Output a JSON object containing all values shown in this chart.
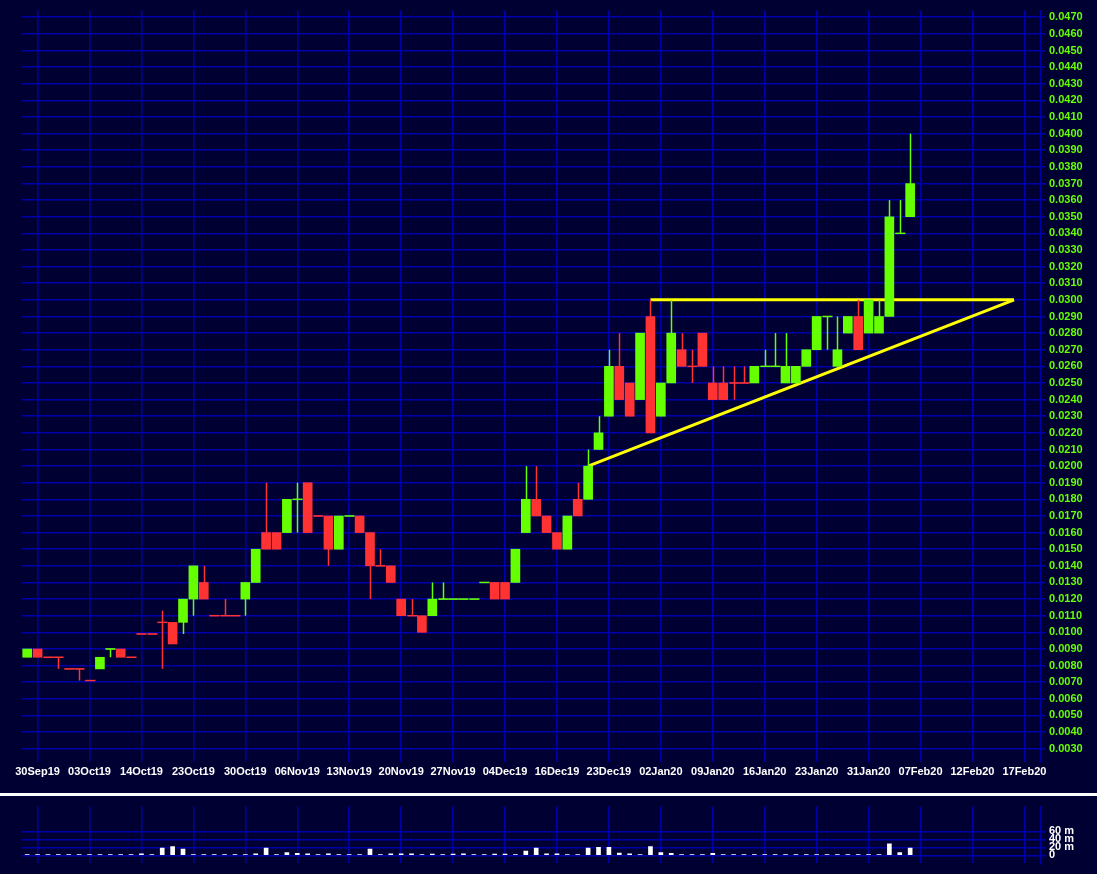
{
  "chart_data": [
    {
      "type": "candlestick",
      "categories": [
        null,
        "30Sep19",
        null,
        null,
        null,
        null,
        "03Oct19",
        null,
        null,
        null,
        null,
        "14Oct19",
        null,
        null,
        null,
        null,
        "23Oct19",
        null,
        null,
        null,
        null,
        "30Oct19",
        null,
        null,
        null,
        null,
        "06Nov19",
        null,
        null,
        null,
        null,
        "13Nov19",
        null,
        null,
        null,
        null,
        "20Nov19",
        null,
        null,
        null,
        null,
        "27Nov19",
        null,
        null,
        null,
        null,
        "04Dec19",
        null,
        null,
        null,
        null,
        "16Dec19",
        null,
        null,
        null,
        null,
        "23Dec19",
        null,
        null,
        null,
        null,
        "02Jan20",
        null,
        null,
        null,
        null,
        "09Jan20",
        null,
        null,
        null,
        null,
        "16Jan20",
        null,
        null,
        null,
        null,
        "23Jan20",
        null,
        null,
        null,
        null,
        "31Jan20",
        null,
        null,
        null,
        null,
        "07Feb20",
        null,
        null,
        null,
        null,
        "12Feb20",
        null,
        null,
        null,
        null,
        "17Feb20",
        null
      ],
      "ohlc": [
        [
          0.0085,
          0.009,
          0.0085,
          0.009
        ],
        [
          0.009,
          0.009,
          0.0085,
          0.0085
        ],
        [
          0.0085,
          0.0085,
          0.0085,
          0.0085
        ],
        [
          0.0085,
          0.0085,
          0.0078,
          0.0085
        ],
        [
          0.0078,
          0.0078,
          0.0078,
          0.0078
        ],
        [
          0.0078,
          0.0078,
          0.0071,
          0.0078
        ],
        [
          0.0071,
          0.0071,
          0.0071,
          0.0071
        ],
        [
          0.0078,
          0.0085,
          0.0078,
          0.0085
        ],
        [
          0.009,
          0.009,
          0.0085,
          0.009
        ],
        [
          0.009,
          0.009,
          0.0085,
          0.0085
        ],
        [
          0.0085,
          0.0085,
          0.0085,
          0.0085
        ],
        [
          0.0099,
          0.0099,
          0.0099,
          0.0099
        ],
        [
          0.0099,
          0.0099,
          0.0099,
          0.0099
        ],
        [
          0.0106,
          0.0113,
          0.0078,
          0.0106
        ],
        [
          0.0106,
          0.0106,
          0.0093,
          0.0093
        ],
        [
          0.0106,
          0.012,
          0.0099,
          0.012
        ],
        [
          0.012,
          0.014,
          0.011,
          0.014
        ],
        [
          0.013,
          0.014,
          0.012,
          0.012
        ],
        [
          0.011,
          0.011,
          0.011,
          0.011
        ],
        [
          0.011,
          0.012,
          0.011,
          0.011
        ],
        [
          0.011,
          0.011,
          0.011,
          0.011
        ],
        [
          0.012,
          0.013,
          0.011,
          0.013
        ],
        [
          0.013,
          0.015,
          0.013,
          0.015
        ],
        [
          0.016,
          0.019,
          0.015,
          0.015
        ],
        [
          0.016,
          0.016,
          0.015,
          0.015
        ],
        [
          0.016,
          0.018,
          0.016,
          0.018
        ],
        [
          0.018,
          0.019,
          0.016,
          0.018
        ],
        [
          0.019,
          0.019,
          0.016,
          0.016
        ],
        [
          0.017,
          0.017,
          0.017,
          0.017
        ],
        [
          0.017,
          0.017,
          0.014,
          0.015
        ],
        [
          0.015,
          0.017,
          0.015,
          0.017
        ],
        [
          0.017,
          0.017,
          0.017,
          0.017
        ],
        [
          0.017,
          0.017,
          0.016,
          0.016
        ],
        [
          0.016,
          0.016,
          0.012,
          0.014
        ],
        [
          0.014,
          0.015,
          0.014,
          0.014
        ],
        [
          0.014,
          0.014,
          0.013,
          0.013
        ],
        [
          0.012,
          0.012,
          0.011,
          0.011
        ],
        [
          0.011,
          0.012,
          0.011,
          0.011
        ],
        [
          0.011,
          0.011,
          0.01,
          0.01
        ],
        [
          0.011,
          0.013,
          0.011,
          0.012
        ],
        [
          0.012,
          0.013,
          0.012,
          0.012
        ],
        [
          0.012,
          0.012,
          0.012,
          0.012
        ],
        [
          0.012,
          0.012,
          0.012,
          0.012
        ],
        [
          0.012,
          0.012,
          0.012,
          0.012
        ],
        [
          0.013,
          0.013,
          0.013,
          0.013
        ],
        [
          0.013,
          0.013,
          0.012,
          0.012
        ],
        [
          0.013,
          0.013,
          0.012,
          0.012
        ],
        [
          0.013,
          0.015,
          0.013,
          0.015
        ],
        [
          0.016,
          0.02,
          0.016,
          0.018
        ],
        [
          0.018,
          0.02,
          0.017,
          0.017
        ],
        [
          0.017,
          0.017,
          0.016,
          0.016
        ],
        [
          0.016,
          0.016,
          0.015,
          0.015
        ],
        [
          0.015,
          0.017,
          0.015,
          0.017
        ],
        [
          0.018,
          0.019,
          0.017,
          0.017
        ],
        [
          0.018,
          0.021,
          0.018,
          0.02
        ],
        [
          0.021,
          0.023,
          0.021,
          0.022
        ],
        [
          0.023,
          0.027,
          0.023,
          0.026
        ],
        [
          0.026,
          0.028,
          0.024,
          0.024
        ],
        [
          0.025,
          0.025,
          0.023,
          0.023
        ],
        [
          0.024,
          0.028,
          0.024,
          0.028
        ],
        [
          0.029,
          0.03,
          0.022,
          0.022
        ],
        [
          0.023,
          0.025,
          0.023,
          0.025
        ],
        [
          0.025,
          0.03,
          0.025,
          0.028
        ],
        [
          0.027,
          0.028,
          0.026,
          0.026
        ],
        [
          0.026,
          0.027,
          0.025,
          0.026
        ],
        [
          0.028,
          0.028,
          0.026,
          0.026
        ],
        [
          0.025,
          0.026,
          0.024,
          0.024
        ],
        [
          0.025,
          0.026,
          0.024,
          0.024
        ],
        [
          0.025,
          0.026,
          0.024,
          0.025
        ],
        [
          0.025,
          0.026,
          0.025,
          0.025
        ],
        [
          0.025,
          0.026,
          0.025,
          0.026
        ],
        [
          0.026,
          0.027,
          0.026,
          0.026
        ],
        [
          0.026,
          0.028,
          0.026,
          0.026
        ],
        [
          0.025,
          0.028,
          0.025,
          0.026
        ],
        [
          0.025,
          0.026,
          0.025,
          0.026
        ],
        [
          0.026,
          0.027,
          0.026,
          0.027
        ],
        [
          0.027,
          0.029,
          0.027,
          0.029
        ],
        [
          0.029,
          0.029,
          0.027,
          0.029
        ],
        [
          0.026,
          0.029,
          0.026,
          0.027
        ],
        [
          0.028,
          0.029,
          0.028,
          0.029
        ],
        [
          0.029,
          0.03,
          0.027,
          0.027
        ],
        [
          0.028,
          0.03,
          0.028,
          0.03
        ],
        [
          0.028,
          0.03,
          0.028,
          0.029
        ],
        [
          0.029,
          0.036,
          0.029,
          0.035
        ],
        [
          0.034,
          0.036,
          0.034,
          0.034
        ],
        [
          0.035,
          0.04,
          0.035,
          0.037
        ],
        null,
        null,
        null,
        null,
        null,
        null,
        null,
        null,
        null,
        null,
        null,
        null
      ],
      "colors": [
        "#66ff00",
        "#ff3333",
        "#ff3333",
        "#ff3333",
        "#ff3333",
        "#ff3333",
        "#ff3333",
        "#66ff00",
        "#66ff00",
        "#ff3333",
        "#ff3333",
        "#ff3333",
        "#ff3333",
        "#ff3333",
        "#ff3333",
        "#66ff00",
        "#66ff00",
        "#ff3333",
        "#ff3333",
        "#ff3333",
        "#ff3333",
        "#66ff00",
        "#66ff00",
        "#ff3333",
        "#ff3333",
        "#66ff00",
        "#66ff00",
        "#ff3333",
        "#ff3333",
        "#ff3333",
        "#66ff00",
        "#66ff00",
        "#ff3333",
        "#ff3333",
        "#ff3333",
        "#ff3333",
        "#ff3333",
        "#ff3333",
        "#ff3333",
        "#66ff00",
        "#66ff00",
        "#66ff00",
        "#66ff00",
        "#66ff00",
        "#66ff00",
        "#ff3333",
        "#ff3333",
        "#66ff00",
        "#66ff00",
        "#ff3333",
        "#ff3333",
        "#ff3333",
        "#66ff00",
        "#ff3333",
        "#66ff00",
        "#66ff00",
        "#66ff00",
        "#ff3333",
        "#ff3333",
        "#66ff00",
        "#ff3333",
        "#66ff00",
        "#66ff00",
        "#ff3333",
        "#ff3333",
        "#ff3333",
        "#ff3333",
        "#ff3333",
        "#ff3333",
        "#ff3333",
        "#66ff00",
        "#66ff00",
        "#66ff00",
        "#66ff00",
        "#66ff00",
        "#66ff00",
        "#66ff00",
        "#66ff00",
        "#66ff00",
        "#66ff00",
        "#ff3333",
        "#66ff00",
        "#66ff00",
        "#66ff00",
        "#66ff00",
        "#66ff00",
        null,
        null,
        null,
        null,
        null,
        null,
        null,
        null,
        null,
        null,
        null,
        null
      ],
      "series": [
        {
          "type": "line",
          "values": [
            null,
            null,
            null,
            null,
            null,
            null,
            null,
            null,
            null,
            null,
            null,
            null,
            null,
            null,
            null,
            null,
            null,
            null,
            null,
            null,
            null,
            null,
            null,
            null,
            null,
            null,
            null,
            null,
            null,
            null,
            null,
            null,
            null,
            null,
            null,
            null,
            null,
            null,
            null,
            null,
            null,
            null,
            null,
            null,
            null,
            null,
            null,
            null,
            null,
            null,
            null,
            null,
            null,
            null,
            0.02,
            null,
            null,
            null,
            null,
            null,
            null,
            null,
            null,
            null,
            null,
            null,
            null,
            null,
            null,
            null,
            null,
            null,
            null,
            null,
            null,
            null,
            null,
            null,
            null,
            null,
            null,
            null,
            null,
            null,
            null,
            null,
            null,
            null,
            null,
            null,
            null,
            null,
            null,
            null,
            null,
            0.03,
            null,
            null
          ],
          "color": "#ffff00"
        },
        {
          "type": "line",
          "values": [
            null,
            null,
            null,
            null,
            null,
            null,
            null,
            null,
            null,
            null,
            null,
            null,
            null,
            null,
            null,
            null,
            null,
            null,
            null,
            null,
            null,
            null,
            null,
            null,
            null,
            null,
            null,
            null,
            null,
            null,
            null,
            null,
            null,
            null,
            null,
            null,
            null,
            null,
            null,
            null,
            null,
            null,
            null,
            null,
            null,
            null,
            null,
            null,
            null,
            null,
            null,
            null,
            null,
            null,
            null,
            null,
            null,
            null,
            null,
            null,
            0.03,
            null,
            null,
            null,
            null,
            null,
            null,
            null,
            null,
            null,
            null,
            null,
            null,
            null,
            null,
            null,
            null,
            null,
            null,
            null,
            null,
            null,
            null,
            null,
            null,
            null,
            null,
            null,
            null,
            null,
            null,
            null,
            null,
            null,
            null,
            0.03,
            null,
            null
          ],
          "color": "#ffff00"
        }
      ],
      "ylim": [
        0.0022,
        0.0474
      ],
      "yticks": [
        {
          "value": 0.003,
          "label": "0.0030"
        },
        {
          "value": 0.004,
          "label": "0.0040"
        },
        {
          "value": 0.005,
          "label": "0.0050"
        },
        {
          "value": 0.006,
          "label": "0.0060"
        },
        {
          "value": 0.007,
          "label": "0.0070"
        },
        {
          "value": 0.008,
          "label": "0.0080"
        },
        {
          "value": 0.009,
          "label": "0.0090"
        },
        {
          "value": 0.01,
          "label": "0.0100"
        },
        {
          "value": 0.011,
          "label": "0.0110"
        },
        {
          "value": 0.012,
          "label": "0.0120"
        },
        {
          "value": 0.013,
          "label": "0.0130"
        },
        {
          "value": 0.014,
          "label": "0.0140"
        },
        {
          "value": 0.015,
          "label": "0.0150"
        },
        {
          "value": 0.016,
          "label": "0.0160"
        },
        {
          "value": 0.017,
          "label": "0.0170"
        },
        {
          "value": 0.018,
          "label": "0.0180"
        },
        {
          "value": 0.019,
          "label": "0.0190"
        },
        {
          "value": 0.02,
          "label": "0.0200"
        },
        {
          "value": 0.021,
          "label": "0.0210"
        },
        {
          "value": 0.022,
          "label": "0.0220"
        },
        {
          "value": 0.023,
          "label": "0.0230"
        },
        {
          "value": 0.024,
          "label": "0.0240"
        },
        {
          "value": 0.025,
          "label": "0.0250"
        },
        {
          "value": 0.026,
          "label": "0.0260"
        },
        {
          "value": 0.027,
          "label": "0.0270"
        },
        {
          "value": 0.028,
          "label": "0.0280"
        },
        {
          "value": 0.029,
          "label": "0.0290"
        },
        {
          "value": 0.03,
          "label": "0.0300"
        },
        {
          "value": 0.031,
          "label": "0.0310"
        },
        {
          "value": 0.032,
          "label": "0.0320"
        },
        {
          "value": 0.033,
          "label": "0.0330"
        },
        {
          "value": 0.034,
          "label": "0.0340"
        },
        {
          "value": 0.035,
          "label": "0.0350"
        },
        {
          "value": 0.036,
          "label": "0.0360"
        },
        {
          "value": 0.037,
          "label": "0.0370"
        },
        {
          "value": 0.038,
          "label": "0.0380"
        },
        {
          "value": 0.039,
          "label": "0.0390"
        },
        {
          "value": 0.04,
          "label": "0.0400"
        },
        {
          "value": 0.041,
          "label": "0.0410"
        },
        {
          "value": 0.042,
          "label": "0.0420"
        },
        {
          "value": 0.043,
          "label": "0.0430"
        },
        {
          "value": 0.044,
          "label": "0.0440"
        },
        {
          "value": 0.045,
          "label": "0.0450"
        },
        {
          "value": 0.046,
          "label": "0.0460"
        },
        {
          "value": 0.047,
          "label": "0.0470"
        }
      ],
      "grid": true
    },
    {
      "type": "bar",
      "categories": [
        null,
        null,
        null,
        null,
        null,
        null,
        null,
        null,
        null,
        null,
        null,
        null,
        null,
        null,
        null,
        null,
        null,
        null,
        null,
        null,
        null,
        null,
        null,
        null,
        null,
        null,
        null,
        null,
        null,
        null,
        null,
        null,
        null,
        null,
        null,
        null,
        null,
        null,
        null,
        null,
        null,
        null,
        null,
        null,
        null,
        null,
        null,
        null,
        null,
        null,
        null,
        null,
        null,
        null,
        null,
        null,
        null,
        null,
        null,
        null,
        null,
        null,
        null,
        null,
        null,
        null,
        null,
        null,
        null,
        null,
        null,
        null,
        null,
        null,
        null,
        null,
        null,
        null,
        null,
        null,
        null,
        null,
        null,
        null,
        null,
        null,
        null,
        null,
        null,
        null,
        null,
        null,
        null,
        null,
        null,
        null,
        null,
        null
      ],
      "values": [
        2,
        2,
        2,
        2,
        2,
        2,
        2,
        2,
        2,
        2,
        2,
        4,
        2,
        18,
        22,
        16,
        2,
        2,
        2,
        2,
        2,
        2,
        4,
        18,
        2,
        7,
        5,
        4,
        2,
        4,
        2,
        2,
        2,
        16,
        2,
        4,
        4,
        4,
        2,
        3,
        2,
        3,
        4,
        2,
        2,
        3,
        3,
        2,
        11,
        18,
        4,
        4,
        2,
        2,
        18,
        20,
        20,
        6,
        4,
        2,
        22,
        7,
        5,
        2,
        2,
        2,
        5,
        2,
        2,
        2,
        2,
        2,
        2,
        2,
        2,
        2,
        2,
        2,
        2,
        2,
        2,
        2,
        2,
        29,
        7,
        18,
        null,
        null,
        null,
        null,
        null,
        null,
        null,
        null,
        null,
        null,
        null,
        null
      ],
      "color": "#ffffff",
      "ylim": [
        -20,
        122
      ],
      "yticks": [
        0,
        {
          "value": 20,
          "label": "20 m"
        },
        {
          "value": 40,
          "label": "40 m"
        },
        {
          "value": 60,
          "label": "60 m"
        }
      ],
      "tick_labels": "y",
      "grid": true
    }
  ]
}
